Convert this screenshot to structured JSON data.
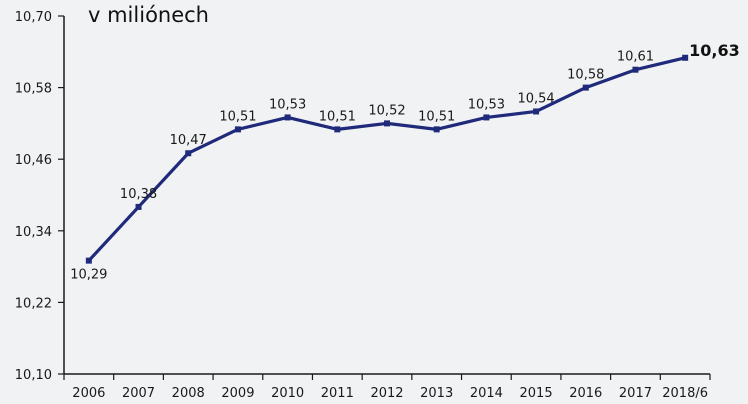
{
  "chart_data": {
    "type": "line",
    "title": "",
    "unit_label": "v miliónech",
    "xlabel": "",
    "ylabel": "",
    "categories": [
      "2006",
      "2007",
      "2008",
      "2009",
      "2010",
      "2011",
      "2012",
      "2013",
      "2014",
      "2015",
      "2016",
      "2017",
      "2018/6"
    ],
    "series": [
      {
        "values": [
          10.29,
          10.38,
          10.47,
          10.51,
          10.53,
          10.51,
          10.52,
          10.51,
          10.53,
          10.54,
          10.58,
          10.61,
          10.63
        ],
        "labels": [
          "10,29",
          "10,38",
          "10,47",
          "10,51",
          "10,53",
          "10,51",
          "10,52",
          "10,51",
          "10,53",
          "10,54",
          "10,58",
          "10,61",
          "10,63"
        ]
      }
    ],
    "ylim": [
      10.1,
      10.7
    ],
    "yticks": [
      10.1,
      10.22,
      10.34,
      10.46,
      10.58,
      10.7
    ],
    "ytick_labels": [
      "10,10",
      "10,22",
      "10,34",
      "10,46",
      "10,58",
      "10,70"
    ],
    "grid": false,
    "legend": "none",
    "colors": {
      "line": "#1f2a7a",
      "axis": "#1a1a1a"
    }
  }
}
